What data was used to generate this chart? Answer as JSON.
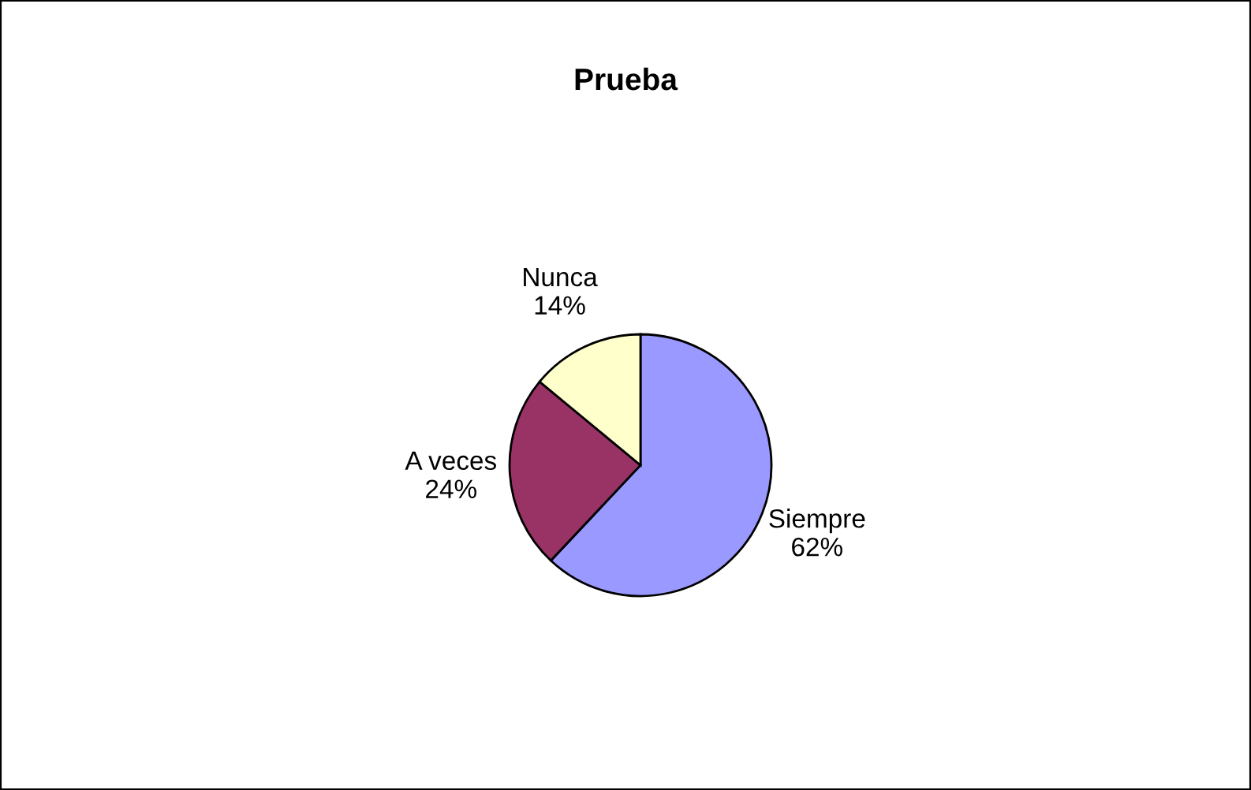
{
  "chart_data": {
    "type": "pie",
    "title": "Prueba",
    "categories": [
      "Siempre",
      "A veces",
      "Nunca"
    ],
    "values": [
      62,
      24,
      14
    ],
    "value_labels": [
      "62%",
      "24%",
      "14%"
    ],
    "colors": [
      "#9999ff",
      "#993366",
      "#ffffcc"
    ],
    "legend": false
  }
}
